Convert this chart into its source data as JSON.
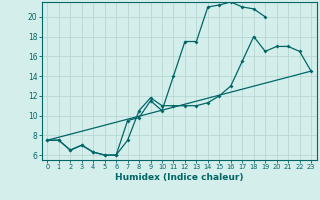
{
  "xlabel": "Humidex (Indice chaleur)",
  "bg_color": "#d4eeec",
  "grid_color": "#b8d8d4",
  "line_color": "#006666",
  "xlim": [
    -0.5,
    23.5
  ],
  "ylim": [
    5.5,
    21.5
  ],
  "xticks": [
    0,
    1,
    2,
    3,
    4,
    5,
    6,
    7,
    8,
    9,
    10,
    11,
    12,
    13,
    14,
    15,
    16,
    17,
    18,
    19,
    20,
    21,
    22,
    23
  ],
  "yticks": [
    6,
    8,
    10,
    12,
    14,
    16,
    18,
    20
  ],
  "line1_x": [
    0,
    1,
    2,
    3,
    4,
    5,
    6,
    7,
    8,
    9,
    10,
    11,
    12,
    13,
    14,
    15,
    16,
    17,
    18,
    19
  ],
  "line1_y": [
    7.5,
    7.5,
    6.5,
    7.0,
    6.3,
    6.0,
    6.0,
    9.5,
    9.8,
    11.5,
    10.5,
    14.0,
    17.5,
    17.5,
    21.0,
    21.2,
    21.5,
    21.0,
    20.8,
    20.0
  ],
  "line2_x": [
    0,
    1,
    2,
    3,
    4,
    5,
    6,
    7,
    8,
    9,
    10,
    11,
    12,
    13,
    14,
    15,
    16,
    17,
    18,
    19,
    20,
    21,
    22,
    23
  ],
  "line2_y": [
    7.5,
    7.5,
    6.5,
    7.0,
    6.3,
    6.0,
    6.0,
    7.5,
    10.5,
    11.8,
    11.0,
    11.0,
    11.0,
    11.0,
    11.3,
    12.0,
    13.0,
    15.5,
    18.0,
    16.5,
    17.0,
    17.0,
    16.5,
    14.5
  ],
  "line3_x": [
    0,
    23
  ],
  "line3_y": [
    7.5,
    14.5
  ]
}
